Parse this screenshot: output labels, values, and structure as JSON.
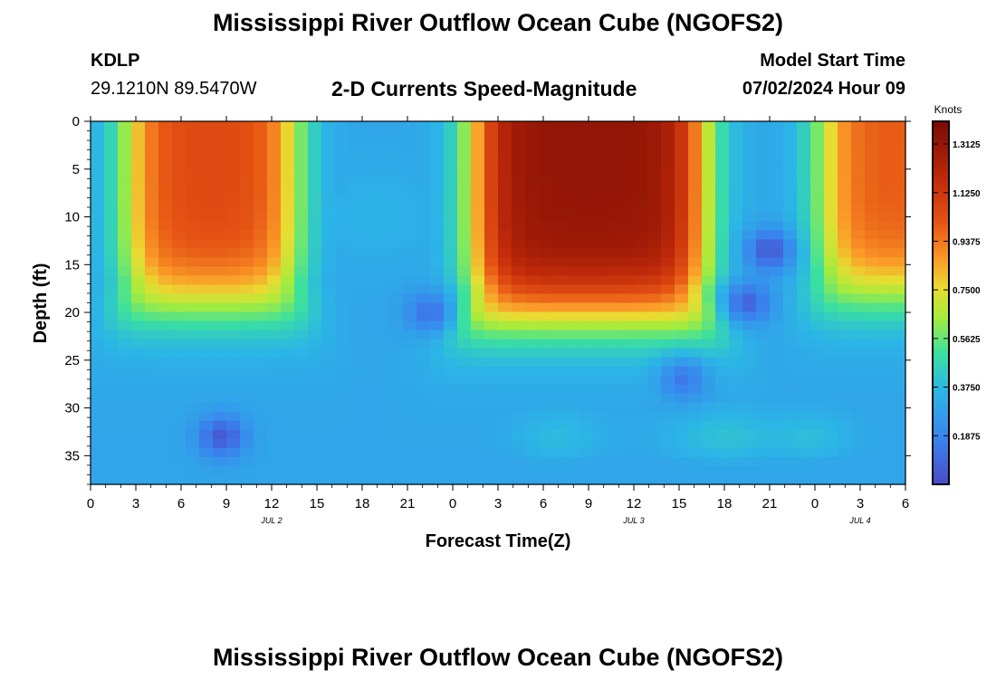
{
  "header": {
    "title": "Mississippi River Outflow Ocean Cube (NGOFS2)",
    "station": "KDLP",
    "coords": "29.1210N  89.5470W",
    "subtitle": "2-D Currents Speed-Magnitude",
    "model_label": "Model Start Time",
    "model_time": "07/02/2024 Hour 09"
  },
  "footer": {
    "title": "Mississippi River Outflow Ocean Cube (NGOFS2)"
  },
  "chart_data": {
    "type": "heatmap",
    "title": "2-D Currents Speed-Magnitude",
    "xlabel": "Forecast Time(Z)",
    "ylabel": "Depth (ft)",
    "x_range_hours": [
      0,
      54
    ],
    "ylim": [
      0,
      38
    ],
    "y_inverted": true,
    "x_tick_labels": [
      "0",
      "3",
      "6",
      "9",
      "12",
      "15",
      "18",
      "21",
      "0",
      "3",
      "6",
      "9",
      "12",
      "15",
      "18",
      "21",
      "0",
      "3",
      "6"
    ],
    "y_ticks": [
      0,
      5,
      10,
      15,
      20,
      25,
      30,
      35
    ],
    "date_labels": [
      {
        "label": "JUL 2",
        "hour": 12
      },
      {
        "label": "JUL 3",
        "hour": 36
      },
      {
        "label": "JUL 4",
        "hour": 51
      }
    ],
    "colorbar": {
      "label": "Knots",
      "min": 0.0,
      "max": 1.4,
      "ticks": [
        "0.1875",
        "0.3750",
        "0.5625",
        "0.7500",
        "0.9375",
        "1.1250",
        "1.3125"
      ],
      "tick_values": [
        0.1875,
        0.375,
        0.5625,
        0.75,
        0.9375,
        1.125,
        1.3125
      ]
    },
    "surface_peaks": [
      {
        "center_hour": 8,
        "half_width_hours": 5.5,
        "max_knots": 1.05,
        "core_depth_ft": 17
      },
      {
        "center_hour": 33,
        "half_width_hours": 7.5,
        "max_knots": 1.32,
        "core_depth_ft": 18
      },
      {
        "center_hour": 53,
        "half_width_hours": 4.5,
        "max_knots": 1.0,
        "core_depth_ft": 16
      }
    ],
    "low_speed_spots": [
      {
        "hour": 8.7,
        "depth_ft": 33,
        "knots": 0.05
      },
      {
        "hour": 22.5,
        "depth_ft": 20,
        "knots": 0.12
      },
      {
        "hour": 39.3,
        "depth_ft": 27,
        "knots": 0.14
      },
      {
        "hour": 43.5,
        "depth_ft": 19,
        "knots": 0.08
      },
      {
        "hour": 45.0,
        "depth_ft": 13.5,
        "knots": 0.05
      }
    ],
    "background_knots": 0.3
  }
}
